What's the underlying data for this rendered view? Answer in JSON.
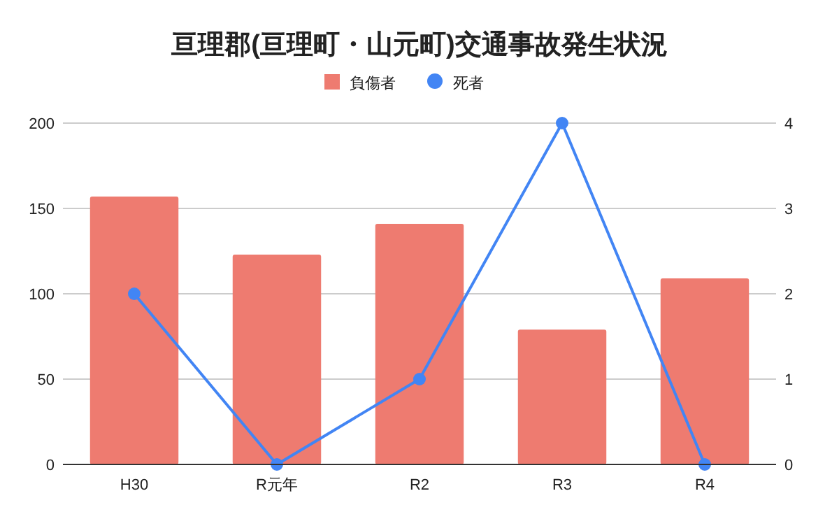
{
  "chart_data": {
    "type": "bar",
    "title": "亘理郡(亘理町・山元町)交通事故発生状況",
    "categories": [
      "H30",
      "R元年",
      "R2",
      "R3",
      "R4"
    ],
    "series": [
      {
        "name": "負傷者",
        "color": "#ee7b70",
        "values": [
          157,
          123,
          141,
          79,
          109
        ]
      },
      {
        "name": "死者",
        "type": "line",
        "color": "#4285f4",
        "axis": "y2",
        "marker": "circle",
        "values": [
          2,
          0,
          1,
          4,
          0
        ]
      }
    ],
    "ylim": [
      0,
      200
    ],
    "yticks": [
      0,
      50,
      100,
      150,
      200
    ],
    "y2lim": [
      0,
      4
    ],
    "y2ticks": [
      0,
      1,
      2,
      3,
      4
    ],
    "grid": "y",
    "legend": "top"
  }
}
